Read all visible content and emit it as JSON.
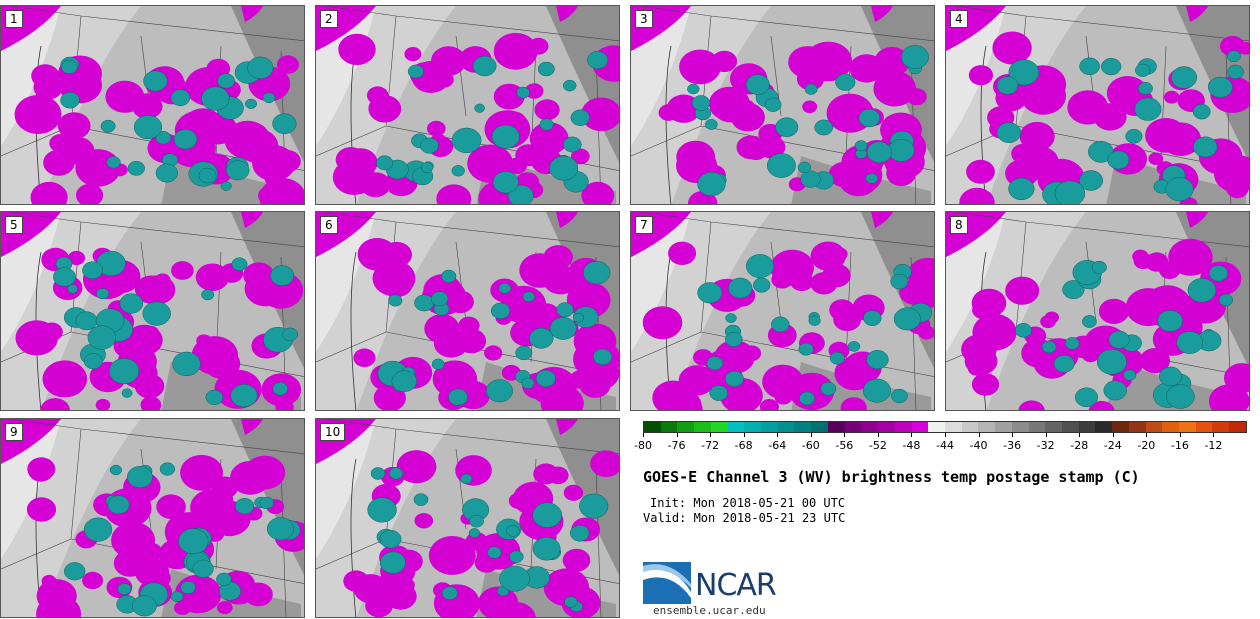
{
  "panels": [
    {
      "number": "1"
    },
    {
      "number": "2"
    },
    {
      "number": "3"
    },
    {
      "number": "4"
    },
    {
      "number": "5"
    },
    {
      "number": "6"
    },
    {
      "number": "7"
    },
    {
      "number": "8"
    },
    {
      "number": "9"
    },
    {
      "number": "10"
    }
  ],
  "colorbar": {
    "colors": [
      "#005000",
      "#0a7a0a",
      "#119e11",
      "#19be19",
      "#22d822",
      "#00c0c0",
      "#00b0b0",
      "#00a0a0",
      "#009090",
      "#008080",
      "#007070",
      "#5a005a",
      "#780078",
      "#900090",
      "#a800a8",
      "#c000c0",
      "#d800d8",
      "#f0f0f0",
      "#dcdcdc",
      "#c8c8c8",
      "#b4b4b4",
      "#a0a0a0",
      "#8c8c8c",
      "#787878",
      "#646464",
      "#505050",
      "#3c3c3c",
      "#2a2a2a",
      "#6e2810",
      "#963218",
      "#c04a14",
      "#e06010",
      "#f07014",
      "#e85010",
      "#d23c0c",
      "#c02808"
    ],
    "tick_labels": [
      "-80",
      "-76",
      "-72",
      "-68",
      "-64",
      "-60",
      "-56",
      "-52",
      "-48",
      "-44",
      "-40",
      "-36",
      "-32",
      "-28",
      "-24",
      "-20",
      "-16",
      "-12"
    ]
  },
  "title": "GOES-E Channel 3 (WV) brightness temp postage stamp (C)",
  "init": "Init: Mon 2018-05-21 00 UTC",
  "valid": "Valid: Mon 2018-05-21 23 UTC",
  "logo": {
    "text": "NCAR",
    "colors": {
      "blue": "#1a6fb5",
      "navy": "#1b3d6e"
    }
  },
  "website": "ensemble.ucar.edu",
  "map_colors": {
    "magenta": "#d400d4",
    "teal": "#1a9c9c",
    "light_gray": "#e6e6e6",
    "mid_gray": "#bdbdbd",
    "dark_gray": "#8f8f8f"
  }
}
